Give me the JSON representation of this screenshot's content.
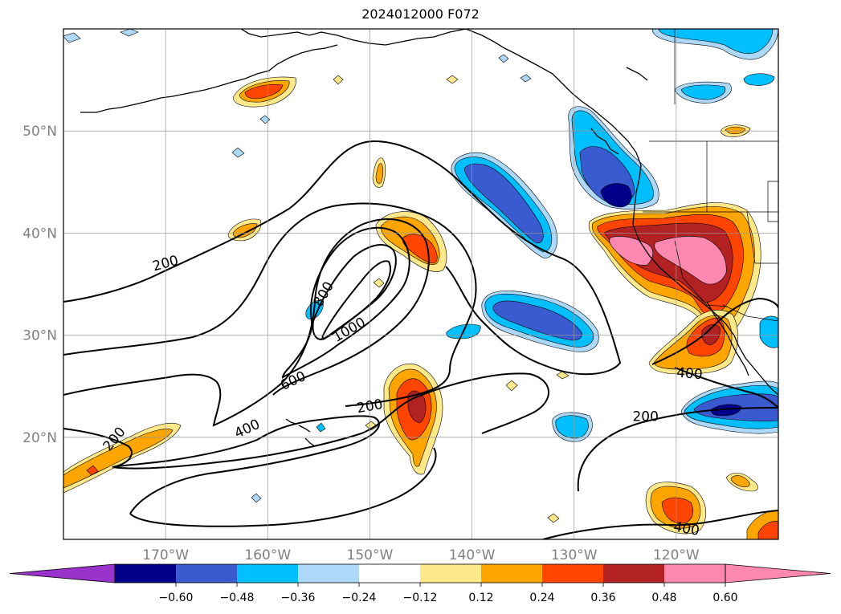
{
  "title": "2024012000 F072",
  "map": {
    "lat_labels": [
      {
        "text": "50°N",
        "lat": 50
      },
      {
        "text": "40°N",
        "lat": 40
      },
      {
        "text": "30°N",
        "lat": 30
      },
      {
        "text": "20°N",
        "lat": 20
      }
    ],
    "lon_labels": [
      {
        "text": "170°W",
        "lon": -170
      },
      {
        "text": "160°W",
        "lon": -160
      },
      {
        "text": "150°W",
        "lon": -150
      },
      {
        "text": "140°W",
        "lon": -140
      },
      {
        "text": "130°W",
        "lon": -130
      },
      {
        "text": "120°W",
        "lon": -120
      }
    ],
    "extent": {
      "lon_min": -180,
      "lon_max": -110,
      "lat_min": 10,
      "lat_max": 60
    },
    "gridlines": true,
    "contour_labels": [
      {
        "text": "200",
        "lon": -170,
        "lat": 37,
        "rot": -15
      },
      {
        "text": "800",
        "lon": -154.5,
        "lat": 34,
        "rot": -60
      },
      {
        "text": "1000",
        "lon": -152,
        "lat": 30.5,
        "rot": -30
      },
      {
        "text": "600",
        "lon": -157.5,
        "lat": 25.5,
        "rot": -25
      },
      {
        "text": "200",
        "lon": -150,
        "lat": 23,
        "rot": -10
      },
      {
        "text": "400",
        "lon": -162,
        "lat": 20.8,
        "rot": -25
      },
      {
        "text": "200",
        "lon": -175,
        "lat": 19.8,
        "rot": -50
      },
      {
        "text": "400",
        "lon": -118.7,
        "lat": 26.2,
        "rot": 5
      },
      {
        "text": "200",
        "lon": -123,
        "lat": 22,
        "rot": 0
      },
      {
        "text": "400",
        "lon": -119,
        "lat": 11,
        "rot": 10
      }
    ]
  },
  "colorbar": {
    "ticks": [
      "−0.60",
      "−0.48",
      "−0.36",
      "−0.24",
      "−0.12",
      "0.12",
      "0.24",
      "0.36",
      "0.48",
      "0.60"
    ],
    "colors": {
      "under": "#9933cc",
      "bins": [
        "#00008b",
        "#3a5bd0",
        "#00bfff",
        "#add8f7",
        "#ffffff",
        "#ffe98a",
        "#ffa500",
        "#ff4500",
        "#b22222",
        "#ff88b0"
      ],
      "over": "#ff88b0"
    }
  }
}
